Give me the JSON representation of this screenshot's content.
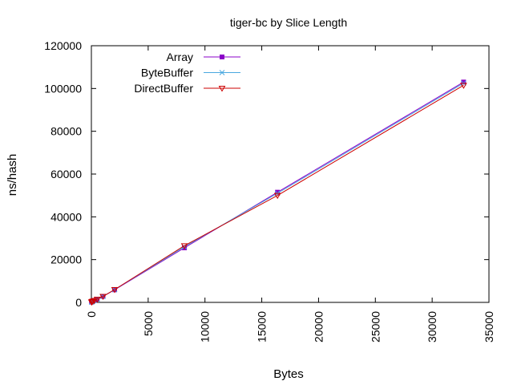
{
  "chart_data": {
    "type": "line",
    "title": "tiger-bc by Slice Length",
    "xlabel": "Bytes",
    "ylabel": "ns/hash",
    "xlim": [
      0,
      35000
    ],
    "ylim": [
      0,
      120000
    ],
    "xticks": [
      0,
      5000,
      10000,
      15000,
      20000,
      25000,
      30000,
      35000
    ],
    "yticks": [
      0,
      20000,
      40000,
      60000,
      80000,
      100000,
      120000
    ],
    "grid": false,
    "legend_position": "top-left",
    "series": [
      {
        "name": "Array",
        "color": "#8b00c8",
        "marker": "square",
        "x": [
          16,
          32,
          64,
          128,
          256,
          512,
          1024,
          2048,
          8192,
          16384,
          32768
        ],
        "y": [
          150,
          250,
          400,
          600,
          900,
          1500,
          2800,
          5900,
          25500,
          51500,
          103000
        ]
      },
      {
        "name": "ByteBuffer",
        "color": "#4aa8e0",
        "marker": "x",
        "x": [
          16,
          32,
          64,
          128,
          256,
          512,
          1024,
          2048,
          8192,
          16384,
          32768
        ],
        "y": [
          150,
          250,
          400,
          600,
          900,
          1500,
          2800,
          6000,
          26000,
          51000,
          102500
        ]
      },
      {
        "name": "DirectBuffer",
        "color": "#cc0000",
        "marker": "triangle-down",
        "x": [
          16,
          32,
          64,
          128,
          256,
          512,
          1024,
          2048,
          8192,
          16384,
          32768
        ],
        "y": [
          150,
          250,
          400,
          600,
          900,
          1500,
          2800,
          6000,
          26500,
          50000,
          101500
        ]
      }
    ]
  }
}
